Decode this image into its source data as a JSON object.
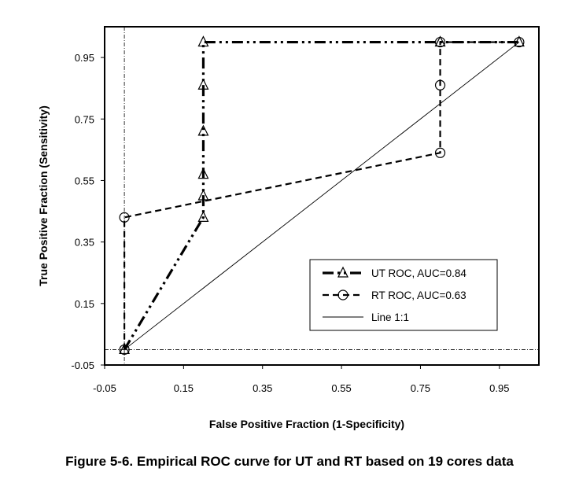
{
  "caption": "Figure 5-6. Empirical ROC curve for UT and RT based on 19 cores data",
  "chart_data": {
    "type": "line",
    "title": "",
    "xlabel": "False Positive Fraction (1-Specificity)",
    "ylabel": "True Positive Fraction (Sensitivity)",
    "xlim": [
      -0.05,
      1.05
    ],
    "ylim": [
      -0.05,
      1.05
    ],
    "x_ticks": [
      "-0.05",
      "0.15",
      "0.35",
      "0.55",
      "0.75",
      "0.95"
    ],
    "y_ticks": [
      "-0.05",
      "0.15",
      "0.35",
      "0.55",
      "0.75",
      "0.95"
    ],
    "grid": false,
    "legend_position": "bottom-right",
    "series": [
      {
        "name": "UT ROC, AUC=0.84",
        "style": "dash-dot-dot",
        "marker": "triangle",
        "x": [
          0.0,
          0.2,
          0.2,
          0.2,
          0.2,
          0.2,
          0.2,
          0.8,
          1.0
        ],
        "y": [
          0.0,
          0.43,
          0.5,
          0.57,
          0.71,
          0.86,
          1.0,
          1.0,
          1.0
        ]
      },
      {
        "name": "RT ROC, AUC=0.63",
        "style": "dashed",
        "marker": "circle",
        "x": [
          0.0,
          0.0,
          0.8,
          0.8,
          0.8,
          1.0
        ],
        "y": [
          0.0,
          0.43,
          0.64,
          0.86,
          1.0,
          1.0
        ]
      },
      {
        "name": "Line 1:1",
        "style": "solid",
        "marker": "none",
        "x": [
          0.0,
          1.0
        ],
        "y": [
          0.0,
          1.0
        ]
      }
    ]
  }
}
